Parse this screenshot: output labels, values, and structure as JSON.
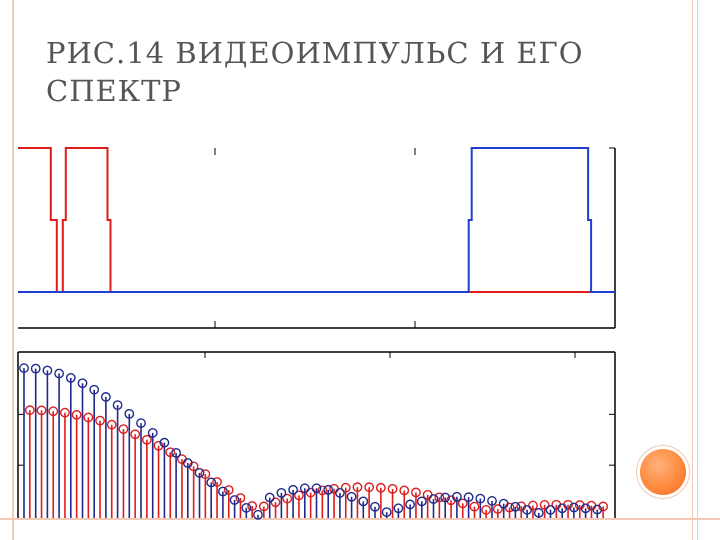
{
  "slide": {
    "title": "РИС.14 ВИДЕОИМПУЛЬС И ЕГО СПЕКТР"
  },
  "colors": {
    "red": "#dd1c1c",
    "blue": "#1f3fd0",
    "navy": "#1e2a8c",
    "accent": "#ff8a3d",
    "frame": "#f3c9b3"
  },
  "chart_data": [
    {
      "type": "line",
      "name": "pulses",
      "xlim": [
        0,
        100
      ],
      "ylim": [
        -0.25,
        1.0
      ],
      "grid": false,
      "series": [
        {
          "color": "red",
          "points": [
            [
              0,
              1
            ],
            [
              5.5,
              1
            ],
            [
              5.5,
              0.5
            ],
            [
              6.5,
              0.5
            ],
            [
              6.5,
              0
            ],
            [
              7.5,
              0
            ],
            [
              7.5,
              0.5
            ],
            [
              8.0,
              0.5
            ],
            [
              8.0,
              1
            ],
            [
              15,
              1
            ],
            [
              15,
              0.5
            ],
            [
              15.5,
              0.5
            ],
            [
              15.5,
              0
            ],
            [
              100,
              0
            ]
          ]
        },
        {
          "color": "blue",
          "points": [
            [
              0,
              0
            ],
            [
              75.5,
              0
            ],
            [
              75.5,
              0.5
            ],
            [
              76,
              0.5
            ],
            [
              76,
              1
            ],
            [
              95.5,
              1
            ],
            [
              95.5,
              0.5
            ],
            [
              96,
              0.5
            ],
            [
              96,
              0
            ],
            [
              100,
              0
            ]
          ]
        }
      ]
    },
    {
      "type": "scatter",
      "name": "spectrum",
      "marker": "circle-stem",
      "xlim": [
        0,
        100
      ],
      "ylim": [
        0,
        1
      ],
      "grid": false,
      "series": [
        {
          "color": "red",
          "x": [
            1,
            3,
            5,
            7,
            9,
            11,
            13,
            15,
            17,
            19,
            21,
            23,
            25,
            27,
            29,
            31,
            33,
            35,
            37,
            39,
            41,
            43,
            45,
            47,
            49,
            51,
            53,
            55,
            57,
            59,
            61,
            63,
            65,
            67,
            69,
            71,
            73,
            75,
            77,
            79,
            81,
            83,
            85,
            87,
            89,
            91,
            93,
            95,
            97,
            99
          ],
          "y": [
            0.687,
            0.686,
            0.68,
            0.671,
            0.657,
            0.64,
            0.619,
            0.593,
            0.564,
            0.531,
            0.495,
            0.456,
            0.414,
            0.369,
            0.322,
            0.272,
            0.221,
            0.169,
            0.117,
            0.065,
            0.062,
            0.089,
            0.113,
            0.134,
            0.152,
            0.166,
            0.177,
            0.184,
            0.187,
            0.187,
            0.183,
            0.176,
            0.166,
            0.153,
            0.138,
            0.121,
            0.102,
            0.082,
            0.061,
            0.04,
            0.045,
            0.055,
            0.063,
            0.068,
            0.072,
            0.073,
            0.073,
            0.071,
            0.067,
            0.062
          ]
        },
        {
          "color": "navy",
          "x": [
            0,
            2,
            4,
            6,
            8,
            10,
            12,
            14,
            16,
            18,
            20,
            22,
            24,
            26,
            28,
            30,
            32,
            34,
            36,
            38,
            40,
            42,
            44,
            46,
            48,
            50,
            52,
            54,
            56,
            58,
            60,
            62,
            64,
            66,
            68,
            70,
            72,
            74,
            76,
            78,
            80,
            82,
            84,
            86,
            88,
            90,
            92,
            94,
            96,
            98
          ],
          "y": [
            0.96,
            0.957,
            0.945,
            0.925,
            0.897,
            0.862,
            0.82,
            0.773,
            0.72,
            0.663,
            0.603,
            0.54,
            0.476,
            0.41,
            0.344,
            0.28,
            0.218,
            0.159,
            0.104,
            0.053,
            0.008,
            0.12,
            0.15,
            0.17,
            0.18,
            0.18,
            0.17,
            0.15,
            0.125,
            0.095,
            0.06,
            0.025,
            0.05,
            0.075,
            0.095,
            0.11,
            0.12,
            0.125,
            0.122,
            0.113,
            0.098,
            0.08,
            0.06,
            0.04,
            0.02,
            0.04,
            0.05,
            0.055,
            0.05,
            0.042
          ]
        }
      ]
    }
  ]
}
